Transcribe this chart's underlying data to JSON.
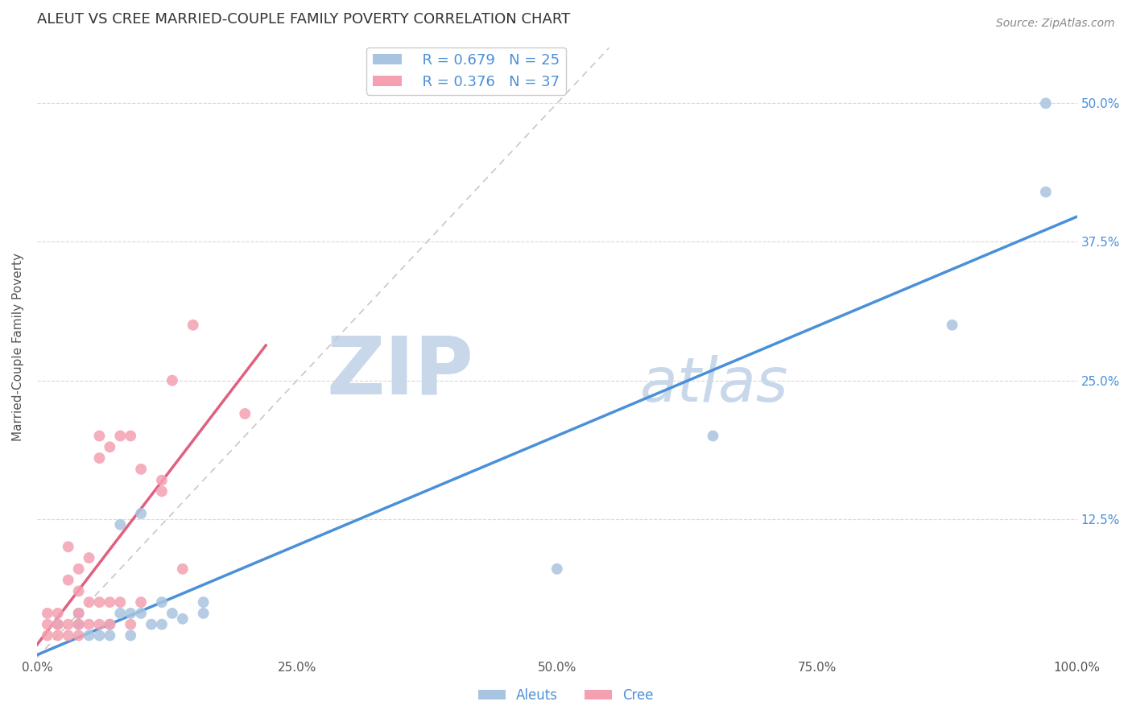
{
  "title": "ALEUT VS CREE MARRIED-COUPLE FAMILY POVERTY CORRELATION CHART",
  "source": "Source: ZipAtlas.com",
  "ylabel": "Married-Couple Family Poverty",
  "xlim": [
    0,
    1.0
  ],
  "ylim": [
    0,
    0.56
  ],
  "xticks": [
    0.0,
    0.25,
    0.5,
    0.75,
    1.0
  ],
  "xticklabels": [
    "0.0%",
    "25.0%",
    "50.0%",
    "75.0%",
    "100.0%"
  ],
  "yticks": [
    0.0,
    0.125,
    0.25,
    0.375,
    0.5
  ],
  "yticklabels_right": [
    "",
    "12.5%",
    "25.0%",
    "37.5%",
    "50.0%"
  ],
  "aleuts_R": 0.679,
  "aleuts_N": 25,
  "cree_R": 0.376,
  "cree_N": 37,
  "aleuts_color": "#a8c4e0",
  "cree_color": "#f4a0b0",
  "aleuts_line_color": "#4a90d9",
  "cree_line_color": "#e06080",
  "diagonal_color": "#c8c8c8",
  "tick_color": "#4a90d9",
  "watermark_zip": "ZIP",
  "watermark_atlas": "atlas",
  "watermark_color": "#c8d8ea",
  "aleuts_x": [
    0.02,
    0.04,
    0.04,
    0.05,
    0.06,
    0.07,
    0.07,
    0.08,
    0.08,
    0.09,
    0.09,
    0.1,
    0.1,
    0.11,
    0.12,
    0.12,
    0.13,
    0.14,
    0.16,
    0.16,
    0.5,
    0.65,
    0.88,
    0.97,
    0.97
  ],
  "aleuts_y": [
    0.03,
    0.03,
    0.04,
    0.02,
    0.02,
    0.02,
    0.03,
    0.04,
    0.12,
    0.02,
    0.04,
    0.04,
    0.13,
    0.03,
    0.03,
    0.05,
    0.04,
    0.035,
    0.05,
    0.04,
    0.08,
    0.2,
    0.3,
    0.5,
    0.42
  ],
  "cree_x": [
    0.01,
    0.01,
    0.01,
    0.02,
    0.02,
    0.02,
    0.03,
    0.03,
    0.03,
    0.03,
    0.04,
    0.04,
    0.04,
    0.04,
    0.04,
    0.05,
    0.05,
    0.05,
    0.06,
    0.06,
    0.06,
    0.06,
    0.07,
    0.07,
    0.07,
    0.08,
    0.08,
    0.09,
    0.09,
    0.1,
    0.1,
    0.12,
    0.12,
    0.13,
    0.14,
    0.15,
    0.2
  ],
  "cree_y": [
    0.02,
    0.03,
    0.04,
    0.02,
    0.03,
    0.04,
    0.02,
    0.03,
    0.07,
    0.1,
    0.02,
    0.03,
    0.04,
    0.06,
    0.08,
    0.03,
    0.05,
    0.09,
    0.03,
    0.05,
    0.18,
    0.2,
    0.03,
    0.05,
    0.19,
    0.05,
    0.2,
    0.03,
    0.2,
    0.05,
    0.17,
    0.15,
    0.16,
    0.25,
    0.08,
    0.3,
    0.22
  ]
}
